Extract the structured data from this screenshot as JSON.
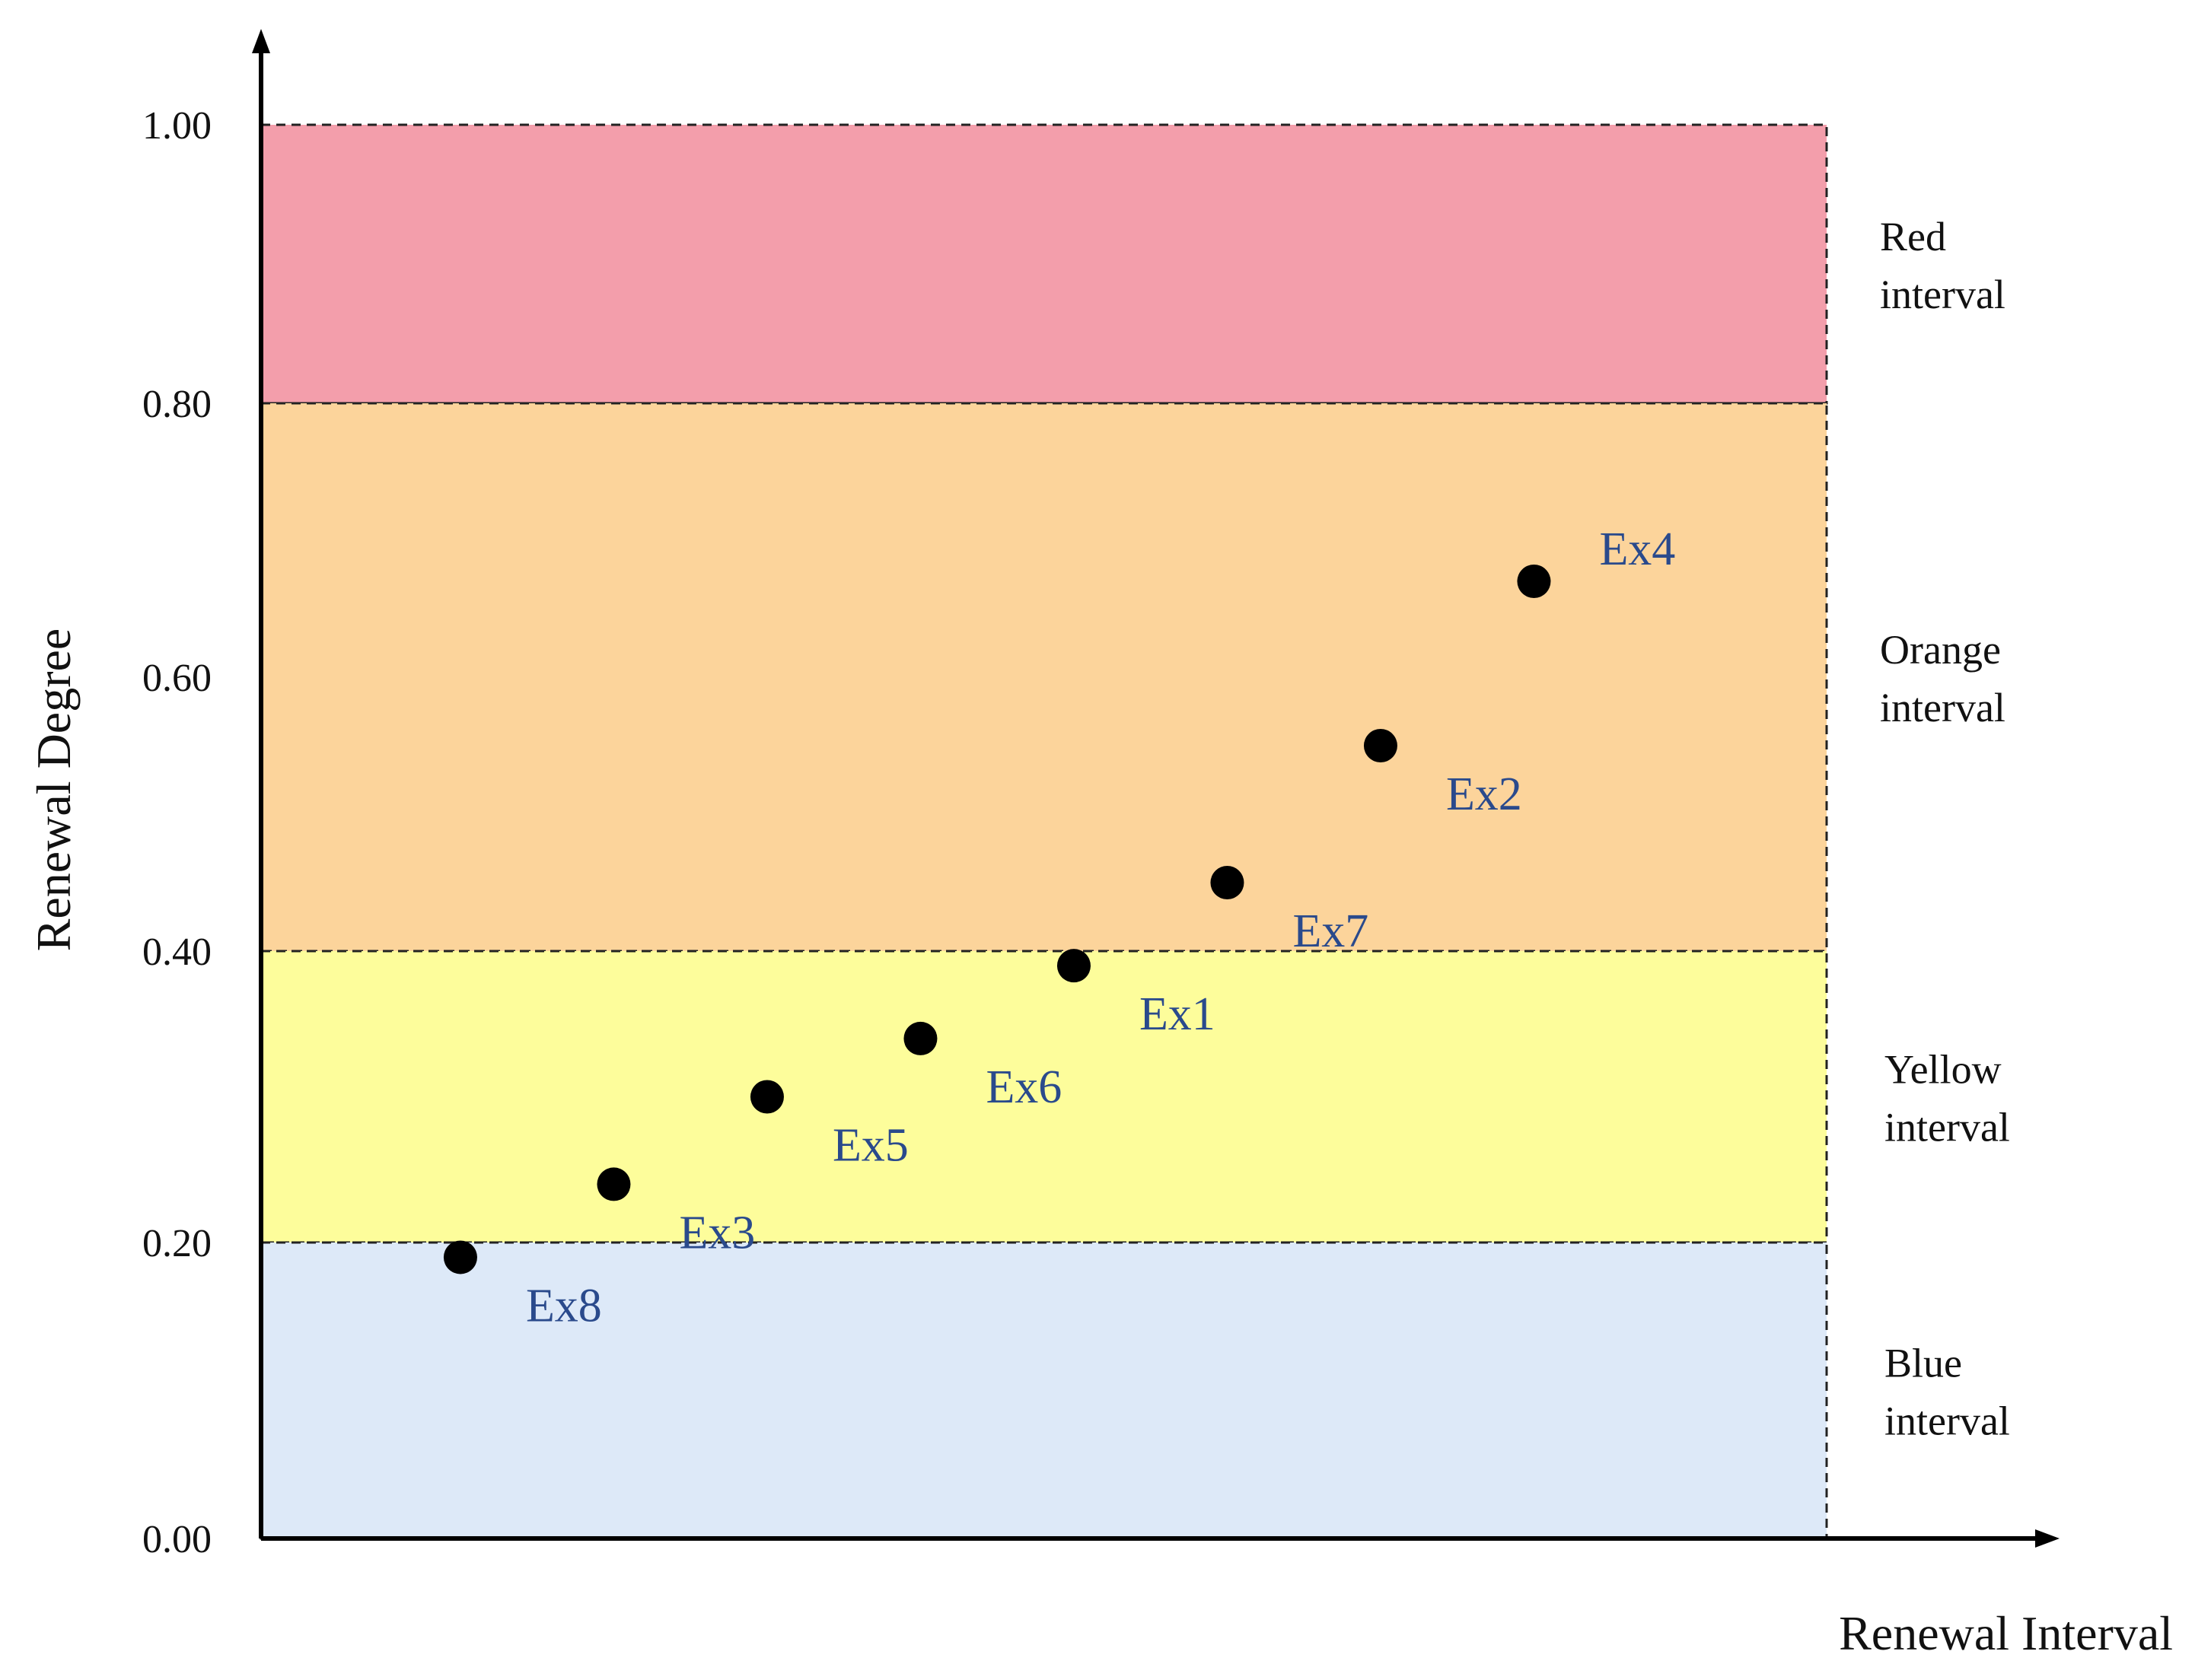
{
  "chart_data": {
    "type": "scatter",
    "title": "",
    "xlabel": "Renewal Interval",
    "ylabel": "Renewal Degree",
    "xlim": [
      0,
      10.2
    ],
    "ylim": [
      0,
      1.0
    ],
    "y_ticks": [
      {
        "value": 0.0,
        "label": "0.00"
      },
      {
        "value": 0.2,
        "label": "0.20"
      },
      {
        "value": 0.4,
        "label": "0.40"
      },
      {
        "value": 0.6,
        "label": "0.60"
      },
      {
        "value": 0.8,
        "label": "0.80"
      },
      {
        "value": 1.0,
        "label": "1.00"
      }
    ],
    "bands": [
      {
        "name": "red",
        "lines": [
          "Red",
          "interval"
        ],
        "from": 0.8,
        "to": 1.0,
        "color": "#f39eab"
      },
      {
        "name": "orange",
        "lines": [
          "Orange",
          "interval"
        ],
        "from": 0.4,
        "to": 0.8,
        "color": "#fcd49b"
      },
      {
        "name": "yellow",
        "lines": [
          "Yellow",
          "interval"
        ],
        "from": 0.2,
        "to": 0.4,
        "color": "#fdfd9b"
      },
      {
        "name": "blue",
        "lines": [
          "Blue",
          "interval"
        ],
        "from": 0.0,
        "to": 0.2,
        "color": "#dde9f8"
      }
    ],
    "points": [
      {
        "label": "Ex8",
        "x": 1.3,
        "y": 0.19
      },
      {
        "label": "Ex3",
        "x": 2.3,
        "y": 0.24
      },
      {
        "label": "Ex5",
        "x": 3.3,
        "y": 0.3
      },
      {
        "label": "Ex6",
        "x": 4.3,
        "y": 0.34
      },
      {
        "label": "Ex1",
        "x": 5.3,
        "y": 0.39
      },
      {
        "label": "Ex7",
        "x": 6.3,
        "y": 0.45
      },
      {
        "label": "Ex2",
        "x": 7.3,
        "y": 0.55
      },
      {
        "label": "Ex4",
        "x": 8.3,
        "y": 0.67
      }
    ],
    "point_color": "#000000",
    "label_color": "#2a4a8c"
  }
}
